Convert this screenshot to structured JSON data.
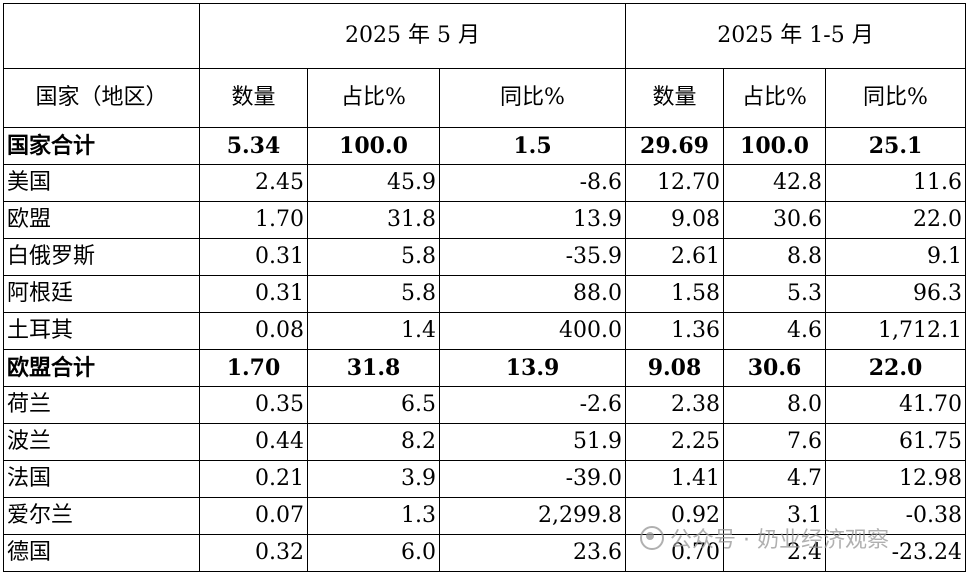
{
  "header": {
    "period_current": "2025 年 5 月",
    "period_ytd": "2025 年 1-5 月",
    "country_label": "国家（地区）",
    "qty_label": "数量",
    "share_label": "占比%",
    "yoy_label": "同比%"
  },
  "rows": [
    {
      "name": "国家合计",
      "total": true,
      "m_qty": "5.34",
      "m_share": "100.0",
      "m_yoy": "1.5",
      "y_qty": "29.69",
      "y_share": "100.0",
      "y_yoy": "25.1"
    },
    {
      "name": "美国",
      "total": false,
      "m_qty": "2.45",
      "m_share": "45.9",
      "m_yoy": "-8.6",
      "y_qty": "12.70",
      "y_share": "42.8",
      "y_yoy": "11.6"
    },
    {
      "name": "欧盟",
      "total": false,
      "m_qty": "1.70",
      "m_share": "31.8",
      "m_yoy": "13.9",
      "y_qty": "9.08",
      "y_share": "30.6",
      "y_yoy": "22.0"
    },
    {
      "name": "白俄罗斯",
      "total": false,
      "m_qty": "0.31",
      "m_share": "5.8",
      "m_yoy": "-35.9",
      "y_qty": "2.61",
      "y_share": "8.8",
      "y_yoy": "9.1"
    },
    {
      "name": "阿根廷",
      "total": false,
      "m_qty": "0.31",
      "m_share": "5.8",
      "m_yoy": "88.0",
      "y_qty": "1.58",
      "y_share": "5.3",
      "y_yoy": "96.3"
    },
    {
      "name": "土耳其",
      "total": false,
      "m_qty": "0.08",
      "m_share": "1.4",
      "m_yoy": "400.0",
      "y_qty": "1.36",
      "y_share": "4.6",
      "y_yoy": "1,712.1"
    },
    {
      "name": "欧盟合计",
      "total": true,
      "m_qty": "1.70",
      "m_share": "31.8",
      "m_yoy": "13.9",
      "y_qty": "9.08",
      "y_share": "30.6",
      "y_yoy": "22.0"
    },
    {
      "name": "荷兰",
      "total": false,
      "m_qty": "0.35",
      "m_share": "6.5",
      "m_yoy": "-2.6",
      "y_qty": "2.38",
      "y_share": "8.0",
      "y_yoy": "41.70"
    },
    {
      "name": "波兰",
      "total": false,
      "m_qty": "0.44",
      "m_share": "8.2",
      "m_yoy": "51.9",
      "y_qty": "2.25",
      "y_share": "7.6",
      "y_yoy": "61.75"
    },
    {
      "name": "法国",
      "total": false,
      "m_qty": "0.21",
      "m_share": "3.9",
      "m_yoy": "-39.0",
      "y_qty": "1.41",
      "y_share": "4.7",
      "y_yoy": "12.98"
    },
    {
      "name": "爱尔兰",
      "total": false,
      "m_qty": "0.07",
      "m_share": "1.3",
      "m_yoy": "2,299.8",
      "y_qty": "0.92",
      "y_share": "3.1",
      "y_yoy": "-0.38"
    },
    {
      "name": "德国",
      "total": false,
      "m_qty": "0.32",
      "m_share": "6.0",
      "m_yoy": "23.6",
      "y_qty": "0.70",
      "y_share": "2.4",
      "y_yoy": "-23.24"
    }
  ],
  "watermark": {
    "icon": "wechat-icon",
    "text": "公众号 · 奶业经济观察"
  }
}
